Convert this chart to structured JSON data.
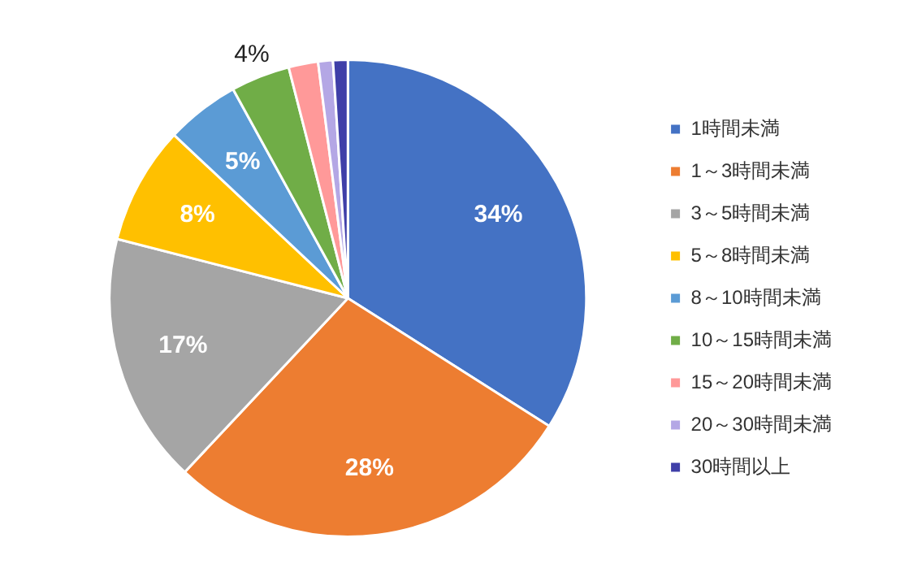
{
  "chart_data": {
    "type": "pie",
    "categories": [
      "1時間未満",
      "1～3時間未満",
      "3～5時間未満",
      "5～8時間未満",
      "8～10時間未満",
      "10～15時間未満",
      "15～20時間未満",
      "20～30時間未満",
      "30時間以上"
    ],
    "values": [
      34,
      28,
      17,
      8,
      5,
      4,
      2,
      1,
      1
    ],
    "colors": [
      "#4472c4",
      "#ed7d31",
      "#a5a5a5",
      "#ffc000",
      "#5b9bd5",
      "#70ad47",
      "#ff9999",
      "#b4a7e5",
      "#3f3fa8"
    ],
    "value_labels": [
      "34%",
      "28%",
      "17%",
      "8%",
      "5%",
      "4%",
      null,
      null,
      null
    ],
    "legend": "right"
  }
}
